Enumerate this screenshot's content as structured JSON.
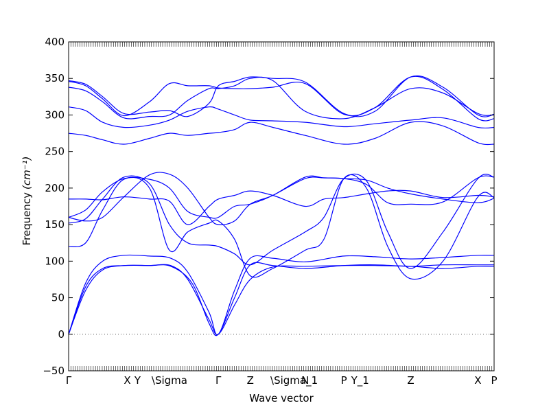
{
  "chart_data": {
    "type": "line",
    "title": "",
    "xlabel": "Wave vector",
    "ylabel": "Frequency",
    "ylabel_unit": "(cm⁻¹)",
    "ylim": [
      -50,
      400
    ],
    "yticks": [
      -50,
      0,
      50,
      100,
      150,
      200,
      250,
      300,
      350,
      400
    ],
    "xlim": [
      0,
      1
    ],
    "high_symmetry_points": [
      {
        "label": "Γ",
        "x": 0.0
      },
      {
        "label": "X",
        "x": 0.138
      },
      {
        "label": "Y",
        "x": 0.162
      },
      {
        "label": "\\Sigma",
        "x": 0.237
      },
      {
        "label": "Γ",
        "x": 0.352
      },
      {
        "label": "Z",
        "x": 0.427
      },
      {
        "label": "\\Sigma_1",
        "x": 0.53
      },
      {
        "label": "N",
        "x": 0.556
      },
      {
        "label": "P",
        "x": 0.647
      },
      {
        "label": "Y_1",
        "x": 0.685
      },
      {
        "label": "Z",
        "x": 0.804
      },
      {
        "label": "X",
        "x": 0.962
      },
      {
        "label": "P",
        "x": 1.0
      }
    ],
    "series_color": "#0000ff",
    "zero_line": true,
    "series": [
      {
        "x": [
          0,
          0.04,
          0.08,
          0.13,
          0.19,
          0.24,
          0.28,
          0.33,
          0.352,
          0.39,
          0.427,
          0.48,
          0.556,
          0.647,
          0.72,
          0.804,
          0.88,
          0.962,
          1.0
        ],
        "y": [
          0,
          60,
          88,
          94,
          94,
          94,
          75,
          20,
          0,
          40,
          75,
          92,
          93,
          94,
          94,
          93,
          90,
          93,
          93
        ]
      },
      {
        "x": [
          0,
          0.04,
          0.08,
          0.13,
          0.19,
          0.24,
          0.29,
          0.33,
          0.352,
          0.39,
          0.427,
          0.48,
          0.556,
          0.647,
          0.72,
          0.804,
          0.88,
          0.962,
          1.0
        ],
        "y": [
          0,
          65,
          90,
          94,
          94,
          93,
          70,
          15,
          0,
          50,
          95,
          94,
          90,
          94,
          95,
          93,
          95,
          95,
          95
        ]
      },
      {
        "x": [
          0,
          0.04,
          0.08,
          0.13,
          0.19,
          0.24,
          0.28,
          0.33,
          0.352,
          0.39,
          0.427,
          0.48,
          0.556,
          0.647,
          0.72,
          0.804,
          0.88,
          0.962,
          1.0
        ],
        "y": [
          0,
          70,
          100,
          108,
          107,
          104,
          85,
          30,
          0,
          60,
          104,
          104,
          99,
          107,
          106,
          103,
          105,
          108,
          108
        ]
      },
      {
        "x": [
          0,
          0.04,
          0.08,
          0.13,
          0.19,
          0.237,
          0.28,
          0.33,
          0.352,
          0.39,
          0.427,
          0.48,
          0.556,
          0.6,
          0.647,
          0.7,
          0.75,
          0.804,
          0.88,
          0.962,
          1.0
        ],
        "y": [
          120,
          125,
          170,
          212,
          200,
          115,
          140,
          152,
          155,
          130,
          80,
          90,
          115,
          130,
          213,
          200,
          120,
          76,
          100,
          188,
          187
        ]
      },
      {
        "x": [
          0,
          0.04,
          0.08,
          0.13,
          0.19,
          0.237,
          0.28,
          0.33,
          0.352,
          0.39,
          0.427,
          0.48,
          0.556,
          0.6,
          0.647,
          0.7,
          0.75,
          0.804,
          0.88,
          0.962,
          1.0
        ],
        "y": [
          152,
          158,
          185,
          215,
          206,
          150,
          125,
          122,
          120,
          110,
          95,
          115,
          140,
          160,
          213,
          210,
          140,
          90,
          140,
          213,
          215
        ]
      },
      {
        "x": [
          0,
          0.04,
          0.08,
          0.13,
          0.19,
          0.237,
          0.28,
          0.33,
          0.352,
          0.39,
          0.427,
          0.48,
          0.556,
          0.6,
          0.647,
          0.7,
          0.75,
          0.804,
          0.88,
          0.962,
          1.0
        ],
        "y": [
          160,
          170,
          195,
          213,
          212,
          200,
          168,
          160,
          160,
          175,
          178,
          190,
          215,
          214,
          213,
          205,
          180,
          178,
          181,
          214,
          215
        ]
      },
      {
        "x": [
          0,
          0.04,
          0.08,
          0.13,
          0.19,
          0.237,
          0.28,
          0.33,
          0.352,
          0.39,
          0.427,
          0.48,
          0.556,
          0.6,
          0.647,
          0.7,
          0.75,
          0.804,
          0.88,
          0.962,
          1.0
        ],
        "y": [
          185,
          185,
          184,
          188,
          185,
          182,
          150,
          175,
          185,
          190,
          196,
          190,
          175,
          185,
          187,
          192,
          196,
          196,
          187,
          190,
          188
        ]
      },
      {
        "x": [
          0,
          0.04,
          0.08,
          0.13,
          0.19,
          0.237,
          0.28,
          0.33,
          0.352,
          0.39,
          0.427,
          0.48,
          0.556,
          0.6,
          0.647,
          0.7,
          0.75,
          0.804,
          0.88,
          0.962,
          1.0
        ],
        "y": [
          160,
          155,
          160,
          188,
          218,
          219,
          200,
          160,
          150,
          155,
          178,
          190,
          213,
          214,
          213,
          211,
          200,
          192,
          185,
          180,
          186
        ]
      },
      {
        "x": [
          0,
          0.04,
          0.08,
          0.13,
          0.19,
          0.237,
          0.28,
          0.33,
          0.352,
          0.39,
          0.427,
          0.48,
          0.556,
          0.647,
          0.72,
          0.804,
          0.88,
          0.962,
          1.0
        ],
        "y": [
          275,
          272,
          266,
          260,
          268,
          275,
          272,
          275,
          276,
          280,
          290,
          283,
          272,
          260,
          268,
          290,
          285,
          262,
          260
        ]
      },
      {
        "x": [
          0,
          0.04,
          0.08,
          0.13,
          0.19,
          0.237,
          0.28,
          0.33,
          0.352,
          0.39,
          0.427,
          0.48,
          0.556,
          0.647,
          0.72,
          0.804,
          0.88,
          0.962,
          1.0
        ],
        "y": [
          311,
          306,
          290,
          283,
          286,
          293,
          305,
          311,
          308,
          300,
          293,
          292,
          290,
          284,
          288,
          293,
          296,
          283,
          283
        ]
      },
      {
        "x": [
          0,
          0.04,
          0.08,
          0.13,
          0.19,
          0.237,
          0.28,
          0.33,
          0.352,
          0.39,
          0.427,
          0.48,
          0.556,
          0.647,
          0.72,
          0.804,
          0.88,
          0.962,
          1.0
        ],
        "y": [
          338,
          333,
          318,
          296,
          298,
          300,
          320,
          336,
          336,
          340,
          350,
          347,
          305,
          295,
          310,
          336,
          330,
          302,
          300
        ]
      },
      {
        "x": [
          0,
          0.04,
          0.08,
          0.13,
          0.19,
          0.237,
          0.28,
          0.33,
          0.352,
          0.39,
          0.427,
          0.48,
          0.556,
          0.647,
          0.72,
          0.804,
          0.88,
          0.962,
          1.0
        ],
        "y": [
          347,
          342,
          325,
          302,
          304,
          306,
          298,
          316,
          340,
          346,
          352,
          350,
          345,
          302,
          305,
          352,
          338,
          300,
          301
        ]
      },
      {
        "x": [
          0,
          0.04,
          0.08,
          0.13,
          0.19,
          0.237,
          0.28,
          0.33,
          0.352,
          0.39,
          0.427,
          0.48,
          0.556,
          0.647,
          0.72,
          0.804,
          0.88,
          0.962,
          1.0
        ],
        "y": [
          346,
          340,
          322,
          299,
          318,
          343,
          340,
          340,
          337,
          336,
          336,
          338,
          343,
          301,
          310,
          352,
          335,
          295,
          295
        ]
      }
    ]
  }
}
